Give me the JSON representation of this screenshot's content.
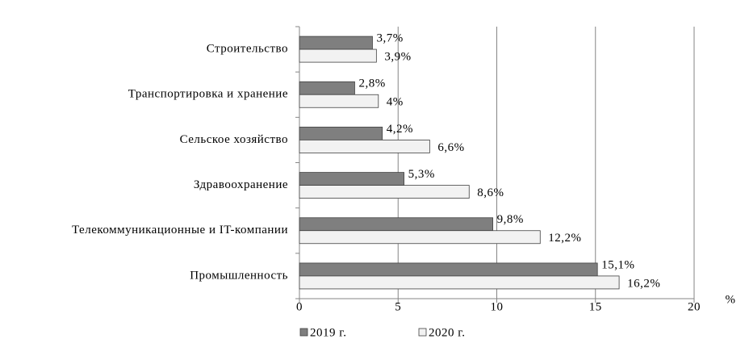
{
  "chart_data": {
    "type": "bar",
    "orientation": "horizontal",
    "categories": [
      "Строительство",
      "Транспортировка и хранение",
      "Сельское хозяйство",
      "Здравоохранение",
      "Телекоммуникационные и IT-компании",
      "Промышленность"
    ],
    "series": [
      {
        "name": "2019 г.",
        "color": "#7f7f7f",
        "values": [
          3.7,
          2.8,
          4.2,
          5.3,
          9.8,
          15.1
        ],
        "value_labels": [
          "3,7%",
          "2,8%",
          "4,2%",
          "5,3%",
          "9,8%",
          "15,1%"
        ]
      },
      {
        "name": "2020 г.",
        "color": "#f2f2f2",
        "values": [
          3.9,
          4,
          6.6,
          8.6,
          12.2,
          16.2
        ],
        "value_labels": [
          "3,9%",
          "4%",
          "6,6%",
          "8,6%",
          "12,2%",
          "16,2%"
        ]
      }
    ],
    "x_label": "%",
    "xlim": [
      0,
      20
    ],
    "xticks": [
      0,
      5,
      10,
      15,
      20
    ],
    "grid": true,
    "legend": "bottom"
  }
}
